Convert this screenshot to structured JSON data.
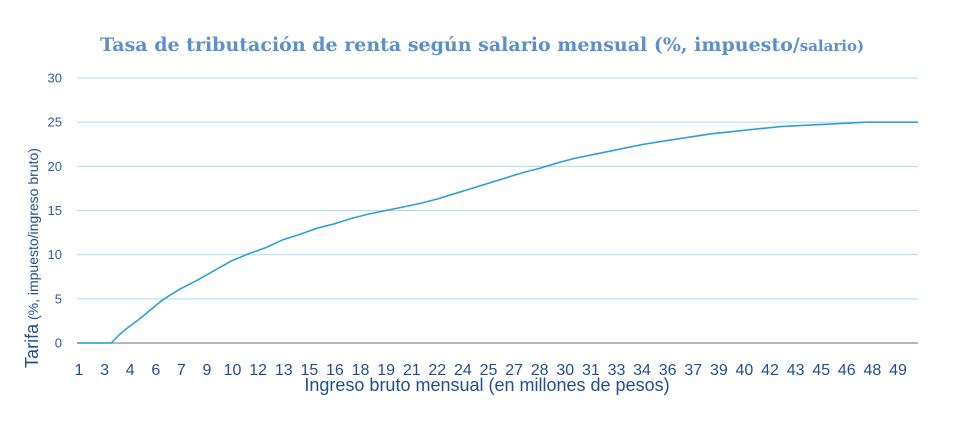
{
  "chart_data": {
    "type": "line",
    "title_main": "Tasa de tributación de renta según salario mensual (%, impuesto/",
    "title_tail": "salario)",
    "ylabel_main": "Tarifa",
    "ylabel_sub": "(%, impuesto/ingreso bruto)",
    "xlabel": "Ingreso bruto mensual (en millones de pesos)",
    "ylim": [
      0,
      30
    ],
    "yticks": [
      "0",
      "5",
      "10",
      "15",
      "20",
      "25",
      "30"
    ],
    "xlim": [
      1,
      50
    ],
    "xtick_labels": [
      "1",
      "3",
      "4",
      "6",
      "7",
      "9",
      "10",
      "12",
      "13",
      "15",
      "16",
      "18",
      "19",
      "21",
      "22",
      "24",
      "25",
      "27",
      "28",
      "30",
      "31",
      "33",
      "34",
      "36",
      "37",
      "39",
      "40",
      "42",
      "43",
      "45",
      "46",
      "48",
      "49"
    ],
    "grid": "horizontal",
    "colors": {
      "line": "#2E9FD8",
      "grid": "#A9DDF2",
      "axis": "#8C8C8C"
    },
    "series": [
      {
        "x": [
          1,
          3,
          3.5,
          4,
          4.5,
          5,
          6,
          7,
          8,
          9,
          10,
          11,
          12,
          13,
          14,
          15,
          16,
          17,
          18,
          19,
          20,
          21,
          22,
          23,
          24,
          25,
          26,
          27,
          28,
          29,
          30,
          31,
          32,
          33,
          34,
          35,
          36,
          37,
          38,
          39,
          40,
          41,
          42,
          43,
          44,
          45,
          46,
          47,
          48,
          49,
          50
        ],
        "values": [
          0,
          0,
          1.0,
          1.8,
          2.5,
          3.3,
          4.9,
          6.1,
          7.1,
          8.2,
          9.3,
          10.1,
          10.8,
          11.7,
          12.3,
          13.0,
          13.5,
          14.1,
          14.6,
          15.0,
          15.4,
          15.8,
          16.3,
          16.9,
          17.5,
          18.1,
          18.7,
          19.3,
          19.8,
          20.4,
          20.9,
          21.3,
          21.7,
          22.1,
          22.5,
          22.8,
          23.1,
          23.4,
          23.7,
          23.9,
          24.1,
          24.3,
          24.5,
          24.6,
          24.7,
          24.8,
          24.9,
          25.0,
          25.0,
          25.0,
          25.0
        ]
      }
    ]
  }
}
